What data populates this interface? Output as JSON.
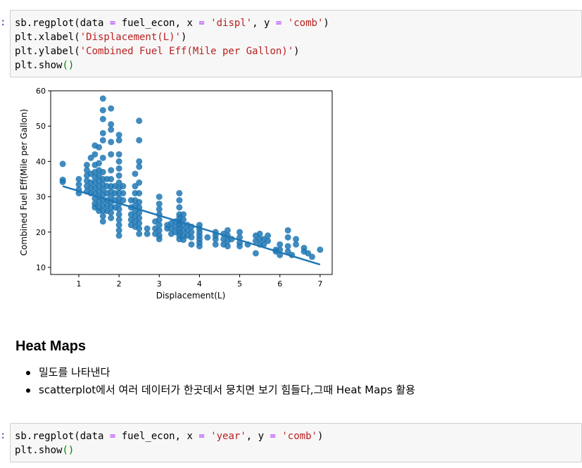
{
  "cell1": {
    "prompt": ":",
    "lines": [
      [
        [
          "sb.regplot(data ",
          "kw"
        ],
        [
          "=",
          "op"
        ],
        [
          " fuel_econ, x ",
          "kw"
        ],
        [
          "=",
          "op"
        ],
        [
          " ",
          "kw"
        ],
        [
          "'displ'",
          "str"
        ],
        [
          ", y ",
          "kw"
        ],
        [
          "=",
          "op"
        ],
        [
          " ",
          "kw"
        ],
        [
          "'comb'",
          "str"
        ],
        [
          ")",
          "kw"
        ]
      ],
      [
        [
          "plt.xlabel(",
          "kw"
        ],
        [
          "'Displacement(L)'",
          "str"
        ],
        [
          ")",
          "kw"
        ]
      ],
      [
        [
          "plt.ylabel(",
          "kw"
        ],
        [
          "'Combined Fuel Eff(Mile per Gallon)'",
          "str"
        ],
        [
          ")",
          "kw"
        ]
      ],
      [
        [
          "plt.show",
          "kw"
        ],
        [
          "()",
          "par"
        ]
      ]
    ]
  },
  "chart_data": {
    "type": "scatter",
    "xlabel": "Displacement(L)",
    "ylabel": "Combined Fuel Eff(Mile per Gallon)",
    "xlim": [
      0.3,
      7.3
    ],
    "ylim": [
      8,
      60
    ],
    "xticks": [
      1,
      2,
      3,
      4,
      5,
      6,
      7
    ],
    "yticks": [
      10,
      20,
      30,
      40,
      50,
      60
    ],
    "color": "#1f77b4",
    "regression_line": {
      "x": [
        0.6,
        7.0
      ],
      "y": [
        33.0,
        10.8
      ]
    },
    "points": [
      [
        0.6,
        39.3
      ],
      [
        0.6,
        34.8
      ],
      [
        0.6,
        34.2
      ],
      [
        1.0,
        35.0
      ],
      [
        1.0,
        33.5
      ],
      [
        1.0,
        32.0
      ],
      [
        1.0,
        31.0
      ],
      [
        1.2,
        39.0
      ],
      [
        1.2,
        37.5
      ],
      [
        1.2,
        36.0
      ],
      [
        1.2,
        34.5
      ],
      [
        1.2,
        33.0
      ],
      [
        1.2,
        31.5
      ],
      [
        1.3,
        41.0
      ],
      [
        1.3,
        36.5
      ],
      [
        1.3,
        34.0
      ],
      [
        1.3,
        32.5
      ],
      [
        1.3,
        31.0
      ],
      [
        1.4,
        44.5
      ],
      [
        1.4,
        42.0
      ],
      [
        1.4,
        39.0
      ],
      [
        1.4,
        37.0
      ],
      [
        1.4,
        35.5
      ],
      [
        1.4,
        34.0
      ],
      [
        1.4,
        32.5
      ],
      [
        1.4,
        31.0
      ],
      [
        1.4,
        29.5
      ],
      [
        1.4,
        28.0
      ],
      [
        1.4,
        27.0
      ],
      [
        1.5,
        44.0
      ],
      [
        1.5,
        39.5
      ],
      [
        1.5,
        37.5
      ],
      [
        1.5,
        36.0
      ],
      [
        1.5,
        34.5
      ],
      [
        1.5,
        33.0
      ],
      [
        1.5,
        31.5
      ],
      [
        1.5,
        30.0
      ],
      [
        1.5,
        28.5
      ],
      [
        1.5,
        27.0
      ],
      [
        1.5,
        26.0
      ],
      [
        1.6,
        57.8
      ],
      [
        1.6,
        54.5
      ],
      [
        1.6,
        52.0
      ],
      [
        1.6,
        48.0
      ],
      [
        1.6,
        46.0
      ],
      [
        1.6,
        41.0
      ],
      [
        1.6,
        37.0
      ],
      [
        1.6,
        35.0
      ],
      [
        1.6,
        33.5
      ],
      [
        1.6,
        32.0
      ],
      [
        1.6,
        30.5
      ],
      [
        1.6,
        29.0
      ],
      [
        1.6,
        27.5
      ],
      [
        1.6,
        26.0
      ],
      [
        1.6,
        24.5
      ],
      [
        1.6,
        23.0
      ],
      [
        1.7,
        35.0
      ],
      [
        1.7,
        33.0
      ],
      [
        1.7,
        31.0
      ],
      [
        1.7,
        29.0
      ],
      [
        1.7,
        27.5
      ],
      [
        1.7,
        26.0
      ],
      [
        1.8,
        55.0
      ],
      [
        1.8,
        50.5
      ],
      [
        1.8,
        49.0
      ],
      [
        1.8,
        45.5
      ],
      [
        1.8,
        42.0
      ],
      [
        1.8,
        37.5
      ],
      [
        1.8,
        35.0
      ],
      [
        1.8,
        33.0
      ],
      [
        1.8,
        31.5
      ],
      [
        1.8,
        30.0
      ],
      [
        1.8,
        28.5
      ],
      [
        1.8,
        27.0
      ],
      [
        1.8,
        25.5
      ],
      [
        1.8,
        24.0
      ],
      [
        1.9,
        33.0
      ],
      [
        1.9,
        31.0
      ],
      [
        1.9,
        29.0
      ],
      [
        1.9,
        27.0
      ],
      [
        2.0,
        47.5
      ],
      [
        2.0,
        46.0
      ],
      [
        2.0,
        42.0
      ],
      [
        2.0,
        40.0
      ],
      [
        2.0,
        38.0
      ],
      [
        2.0,
        36.0
      ],
      [
        2.0,
        34.0
      ],
      [
        2.0,
        32.5
      ],
      [
        2.0,
        31.0
      ],
      [
        2.0,
        29.5
      ],
      [
        2.0,
        28.0
      ],
      [
        2.0,
        26.5
      ],
      [
        2.0,
        25.0
      ],
      [
        2.0,
        23.5
      ],
      [
        2.0,
        22.0
      ],
      [
        2.0,
        20.5
      ],
      [
        2.0,
        19.0
      ],
      [
        2.1,
        33.0
      ],
      [
        2.1,
        31.0
      ],
      [
        2.1,
        29.0
      ],
      [
        2.3,
        29.0
      ],
      [
        2.3,
        27.0
      ],
      [
        2.3,
        25.0
      ],
      [
        2.3,
        23.5
      ],
      [
        2.3,
        22.0
      ],
      [
        2.4,
        36.5
      ],
      [
        2.4,
        33.0
      ],
      [
        2.4,
        31.0
      ],
      [
        2.4,
        29.0
      ],
      [
        2.4,
        27.5
      ],
      [
        2.4,
        26.0
      ],
      [
        2.4,
        24.5
      ],
      [
        2.4,
        23.0
      ],
      [
        2.4,
        21.5
      ],
      [
        2.5,
        51.5
      ],
      [
        2.5,
        46.0
      ],
      [
        2.5,
        40.0
      ],
      [
        2.5,
        38.5
      ],
      [
        2.5,
        34.0
      ],
      [
        2.5,
        31.0
      ],
      [
        2.5,
        28.5
      ],
      [
        2.5,
        27.0
      ],
      [
        2.5,
        25.5
      ],
      [
        2.5,
        24.0
      ],
      [
        2.5,
        22.5
      ],
      [
        2.5,
        21.0
      ],
      [
        2.5,
        19.5
      ],
      [
        2.7,
        21.0
      ],
      [
        2.7,
        19.5
      ],
      [
        2.9,
        23.0
      ],
      [
        2.9,
        21.0
      ],
      [
        2.9,
        19.5
      ],
      [
        3.0,
        30.0
      ],
      [
        3.0,
        28.0
      ],
      [
        3.0,
        26.5
      ],
      [
        3.0,
        25.0
      ],
      [
        3.0,
        23.5
      ],
      [
        3.0,
        22.0
      ],
      [
        3.0,
        20.5
      ],
      [
        3.0,
        19.0
      ],
      [
        3.0,
        18.0
      ],
      [
        3.2,
        22.0
      ],
      [
        3.2,
        21.0
      ],
      [
        3.3,
        22.5
      ],
      [
        3.3,
        21.0
      ],
      [
        3.3,
        19.5
      ],
      [
        3.4,
        23.0
      ],
      [
        3.4,
        21.5
      ],
      [
        3.4,
        20.0
      ],
      [
        3.5,
        31.0
      ],
      [
        3.5,
        29.0
      ],
      [
        3.5,
        27.0
      ],
      [
        3.5,
        25.0
      ],
      [
        3.5,
        24.0
      ],
      [
        3.5,
        23.0
      ],
      [
        3.5,
        22.0
      ],
      [
        3.5,
        21.0
      ],
      [
        3.5,
        20.0
      ],
      [
        3.5,
        19.0
      ],
      [
        3.5,
        18.0
      ],
      [
        3.6,
        25.0
      ],
      [
        3.6,
        23.5
      ],
      [
        3.6,
        22.0
      ],
      [
        3.6,
        20.5
      ],
      [
        3.6,
        19.0
      ],
      [
        3.6,
        17.8
      ],
      [
        3.7,
        22.0
      ],
      [
        3.7,
        20.5
      ],
      [
        3.7,
        19.0
      ],
      [
        3.8,
        21.5
      ],
      [
        3.8,
        20.0
      ],
      [
        3.8,
        18.5
      ],
      [
        3.8,
        16.5
      ],
      [
        4.0,
        22.0
      ],
      [
        4.0,
        21.0
      ],
      [
        4.0,
        20.0
      ],
      [
        4.0,
        19.0
      ],
      [
        4.0,
        18.0
      ],
      [
        4.0,
        17.0
      ],
      [
        4.0,
        16.0
      ],
      [
        4.2,
        18.5
      ],
      [
        4.4,
        20.0
      ],
      [
        4.4,
        19.0
      ],
      [
        4.4,
        18.0
      ],
      [
        4.4,
        16.5
      ],
      [
        4.6,
        19.5
      ],
      [
        4.6,
        18.0
      ],
      [
        4.6,
        16.5
      ],
      [
        4.7,
        20.5
      ],
      [
        4.7,
        19.0
      ],
      [
        4.7,
        17.5
      ],
      [
        4.7,
        16.0
      ],
      [
        4.8,
        18.0
      ],
      [
        5.0,
        20.0
      ],
      [
        5.0,
        18.5
      ],
      [
        5.0,
        17.0
      ],
      [
        5.0,
        16.0
      ],
      [
        5.2,
        16.5
      ],
      [
        5.4,
        19.0
      ],
      [
        5.4,
        17.5
      ],
      [
        5.4,
        14.0
      ],
      [
        5.5,
        19.5
      ],
      [
        5.5,
        18.0
      ],
      [
        5.5,
        16.5
      ],
      [
        5.6,
        18.0
      ],
      [
        5.6,
        16.5
      ],
      [
        5.7,
        19.0
      ],
      [
        5.7,
        17.5
      ],
      [
        5.9,
        15.0
      ],
      [
        5.9,
        14.5
      ],
      [
        6.0,
        16.5
      ],
      [
        6.0,
        15.0
      ],
      [
        6.0,
        13.5
      ],
      [
        6.2,
        20.5
      ],
      [
        6.2,
        18.5
      ],
      [
        6.2,
        16.0
      ],
      [
        6.2,
        14.5
      ],
      [
        6.3,
        13.5
      ],
      [
        6.4,
        18.0
      ],
      [
        6.4,
        16.5
      ],
      [
        6.6,
        15.5
      ],
      [
        6.6,
        14.5
      ],
      [
        6.7,
        14.0
      ],
      [
        6.8,
        13.0
      ],
      [
        7.0,
        15.0
      ]
    ]
  },
  "markdown": {
    "heading": "Heat Maps",
    "bullets": [
      "밀도를 나타낸다",
      "scatterplot에서 여러 데이터가 한곳데서 뭉치면 보기 힘들다,그때 Heat Maps 활용"
    ]
  },
  "cell2": {
    "prompt": ":",
    "lines": [
      [
        [
          "sb.regplot(data ",
          "kw"
        ],
        [
          "=",
          "op"
        ],
        [
          " fuel_econ, x ",
          "kw"
        ],
        [
          "=",
          "op"
        ],
        [
          " ",
          "kw"
        ],
        [
          "'year'",
          "str"
        ],
        [
          ", y ",
          "kw"
        ],
        [
          "=",
          "op"
        ],
        [
          " ",
          "kw"
        ],
        [
          "'comb'",
          "str"
        ],
        [
          ")",
          "kw"
        ]
      ],
      [
        [
          "plt.show",
          "kw"
        ],
        [
          "()",
          "par"
        ]
      ]
    ]
  }
}
